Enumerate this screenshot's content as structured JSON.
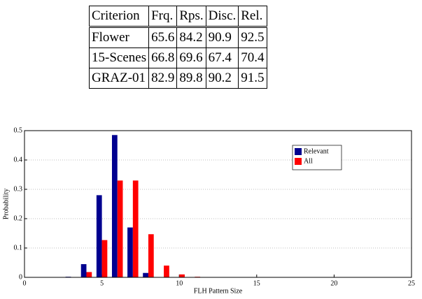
{
  "table": {
    "header": [
      "Criterion",
      "Frq.",
      "Rps.",
      "Disc.",
      "Rel."
    ],
    "rows": [
      [
        "Flower",
        "65.6",
        "84.2",
        "90.9",
        "92.5"
      ],
      [
        "15-Scenes",
        "66.8",
        "69.6",
        "67.4",
        "70.4"
      ],
      [
        "GRAZ-01",
        "82.9",
        "89.8",
        "90.2",
        "91.5"
      ]
    ]
  },
  "chart_data": {
    "type": "bar",
    "x": [
      3,
      4,
      5,
      6,
      7,
      8,
      9,
      10,
      11
    ],
    "series": [
      {
        "name": "Relevant",
        "color": "#00008f",
        "values": [
          0.002,
          0.045,
          0.28,
          0.485,
          0.17,
          0.015,
          0,
          0,
          0
        ]
      },
      {
        "name": "All",
        "color": "#ff0000",
        "values": [
          0.001,
          0.018,
          0.127,
          0.33,
          0.33,
          0.147,
          0.04,
          0.01,
          0.002
        ]
      }
    ],
    "xlabel": "FLH Pattern Size",
    "ylabel": "Probability",
    "xlim": [
      0,
      25
    ],
    "xticks": [
      0,
      5,
      10,
      15,
      20,
      25
    ],
    "ylim": [
      0,
      0.5
    ],
    "yticks": [
      0,
      0.1,
      0.2,
      0.3,
      0.4,
      0.5
    ],
    "grid": true,
    "legend": "upper right"
  }
}
